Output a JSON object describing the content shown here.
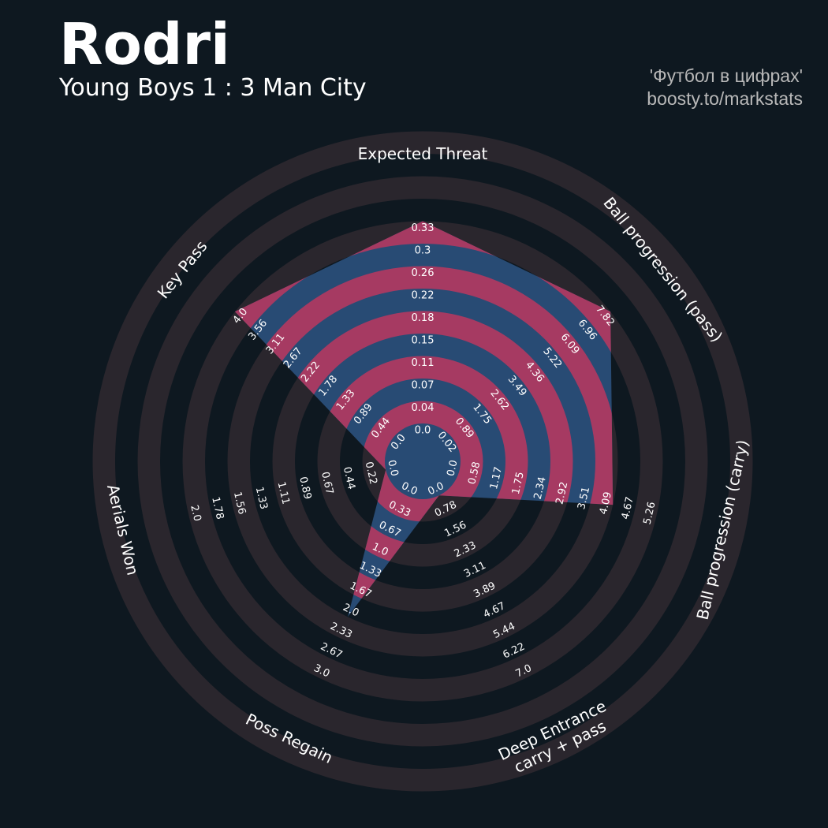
{
  "header": {
    "title": "Rodri",
    "subtitle": "Young Boys 1 : 3 Man City",
    "credit_line1": "'Футбол в цифрах'",
    "credit_line2": "boosty.to/markstats"
  },
  "colors": {
    "background": "#0e1820",
    "outer_band": "#2a262d",
    "player_fill": "#284b74",
    "player_band": "#a63a62"
  },
  "chart_data": {
    "type": "radar",
    "player": "Rodri",
    "axes": [
      {
        "label": [
          "Expected Threat"
        ],
        "ticks": [
          "0.0",
          "0.04",
          "0.07",
          "0.11",
          "0.15",
          "0.18",
          "0.22",
          "0.26",
          "0.3",
          "0.33"
        ],
        "value": 0.33
      },
      {
        "label": [
          "Ball progression (pass)"
        ],
        "ticks": [
          "0.02",
          "0.89",
          "1.75",
          "2.62",
          "3.49",
          "4.36",
          "5.22",
          "6.09",
          "6.96",
          "7.82"
        ],
        "value": 7.82
      },
      {
        "label": [
          "Ball progression (carry)"
        ],
        "ticks": [
          "0.0",
          "0.58",
          "1.17",
          "1.75",
          "2.34",
          "2.92",
          "3.51",
          "4.09",
          "4.67",
          "5.26"
        ],
        "value": 4.09
      },
      {
        "label": [
          "Deep Entrance",
          "carry + pass"
        ],
        "ticks": [
          "0.0",
          "0.78",
          "1.56",
          "2.33",
          "3.11",
          "3.89",
          "4.67",
          "5.44",
          "6.22",
          "7.0"
        ],
        "value": 0.0
      },
      {
        "label": [
          "Poss Regain"
        ],
        "ticks": [
          "0.0",
          "0.33",
          "0.67",
          "1.0",
          "1.33",
          "1.67",
          "2.0",
          "2.33",
          "2.67",
          "3.0"
        ],
        "value": 2.0
      },
      {
        "label": [
          "Aerials Won"
        ],
        "ticks": [
          "0.0",
          "0.22",
          "0.44",
          "0.67",
          "0.89",
          "1.11",
          "1.33",
          "1.56",
          "1.78",
          "2.0"
        ],
        "value": 0.0
      },
      {
        "label": [
          "Key Pass"
        ],
        "ticks": [
          "0.0",
          "0.44",
          "0.89",
          "1.33",
          "1.78",
          "2.22",
          "2.67",
          "3.11",
          "3.56",
          "4.0"
        ],
        "value": 4.0
      }
    ]
  }
}
